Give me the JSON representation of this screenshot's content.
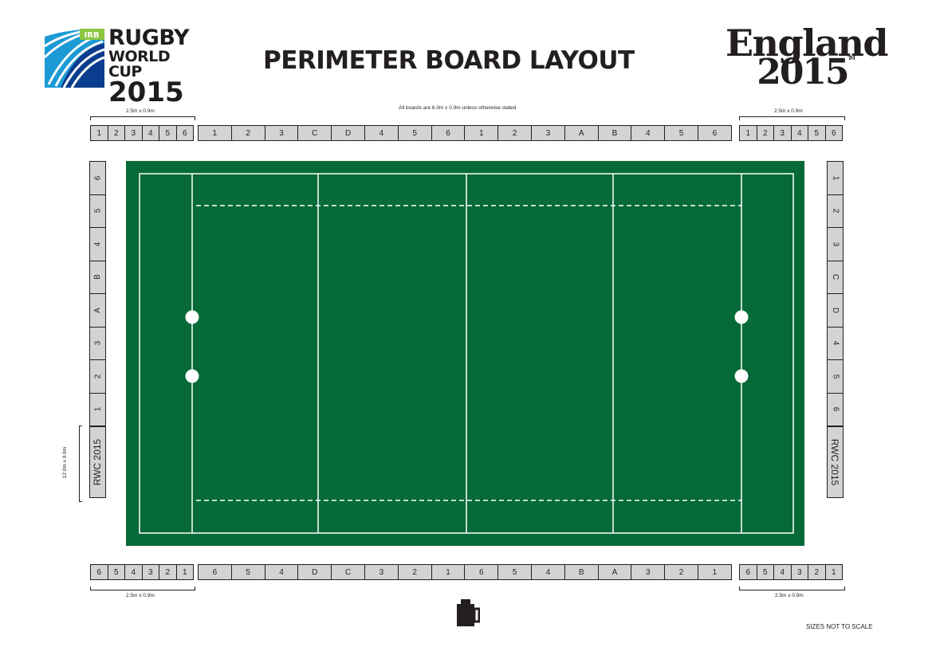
{
  "header": {
    "rwc_logo": {
      "badge": "IRB",
      "line1": "RUGBY",
      "line2": "WORLD CUP",
      "line3": "2015"
    },
    "title": "PERIMETER BOARD LAYOUT",
    "england_logo": {
      "line1": "England",
      "line2": "2015",
      "tm": "TM"
    }
  },
  "notes": {
    "top_left_dim": "2.5m x 0.9m",
    "top_center": "All boards are 6.0m x 0.9m unless otherwise stated",
    "top_right_dim": "2.5m x 0.9m",
    "bottom_left_dim": "2.5m x 0.9m",
    "bottom_right_dim": "2.5m x 0.9m",
    "left_vertical_dim": "12.0m x 0.9m",
    "scale": "SIZES NOT TO SCALE"
  },
  "boards": {
    "top_left_small": [
      "1",
      "2",
      "3",
      "4",
      "5",
      "6"
    ],
    "top_main": [
      "1",
      "2",
      "3",
      "C",
      "D",
      "4",
      "5",
      "6",
      "1",
      "2",
      "3",
      "A",
      "B",
      "4",
      "5",
      "6"
    ],
    "top_right_small": [
      "1",
      "2",
      "3",
      "4",
      "5",
      "6"
    ],
    "bottom_left_small": [
      "6",
      "5",
      "4",
      "3",
      "2",
      "1"
    ],
    "bottom_main": [
      "6",
      "5",
      "4",
      "D",
      "C",
      "3",
      "2",
      "1",
      "6",
      "5",
      "4",
      "B",
      "A",
      "3",
      "2",
      "1"
    ],
    "bottom_right_small": [
      "6",
      "5",
      "4",
      "3",
      "2",
      "1"
    ],
    "left_side": [
      "6",
      "5",
      "4",
      "B",
      "A",
      "3",
      "2",
      "1"
    ],
    "left_rwc": "RWC 2015",
    "right_side": [
      "1",
      "2",
      "3",
      "C",
      "D",
      "4",
      "5",
      "6"
    ],
    "right_rwc": "RWC 2015"
  },
  "colors": {
    "pitch": "#066a38",
    "board": "#d1d3d4",
    "line": "#ffffff"
  }
}
